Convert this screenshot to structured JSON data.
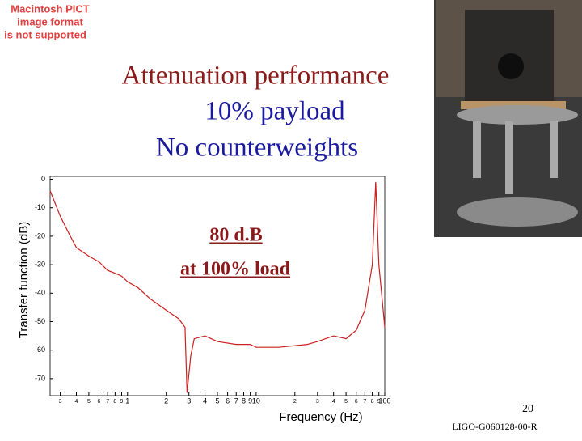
{
  "slide": {
    "placeholder": [
      "Macintosh PICT",
      "image format",
      "is not supported"
    ],
    "title_lines": [
      "Attenuation performance",
      "10% payload",
      "No counterweights"
    ],
    "annotation_lines": [
      "80 d.B",
      "at 100% load"
    ],
    "page_number": "20",
    "footer": "LIGO-G060128-00-R"
  },
  "chart_data": {
    "type": "line",
    "x_label": "Frequency (Hz)",
    "y_label": "Transfer function (dB)",
    "xscale": "log",
    "color": "#cc2020",
    "xlim": [
      0.25,
      100
    ],
    "ylim": [
      -76,
      1
    ],
    "xticks": [
      {
        "value": 0.3,
        "label": "3"
      },
      {
        "value": 0.4,
        "label": "4"
      },
      {
        "value": 0.5,
        "label": "5"
      },
      {
        "value": 0.6,
        "label": "6"
      },
      {
        "value": 0.7,
        "label": "7"
      },
      {
        "value": 0.8,
        "label": "8"
      },
      {
        "value": 0.9,
        "label": "9"
      },
      1,
      2,
      3,
      4,
      5,
      6,
      7,
      8,
      9,
      10,
      {
        "value": 20,
        "label": "2"
      },
      {
        "value": 30,
        "label": "3"
      },
      {
        "value": 40,
        "label": "4"
      },
      {
        "value": 50,
        "label": "5"
      },
      {
        "value": 60,
        "label": "6"
      },
      {
        "value": 70,
        "label": "7"
      },
      {
        "value": 80,
        "label": "8"
      },
      {
        "value": 90,
        "label": "9"
      },
      100
    ],
    "yticks": [
      0,
      -10,
      -20,
      -30,
      -40,
      -50,
      -60,
      -70
    ],
    "x": [
      0.25,
      0.3,
      0.35,
      0.4,
      0.5,
      0.6,
      0.7,
      0.8,
      0.9,
      1,
      1.2,
      1.5,
      2,
      2.5,
      2.8,
      2.9,
      3.1,
      3.3,
      4,
      5,
      7,
      9,
      10,
      15,
      25,
      30,
      40,
      50,
      60,
      70,
      80,
      85,
      90,
      100
    ],
    "values": [
      -4,
      -13,
      -19,
      -24,
      -27,
      -29,
      -32,
      -33,
      -34,
      -36,
      -38,
      -42,
      -46,
      -49,
      -52,
      -75,
      -62,
      -56,
      -55,
      -57,
      -58,
      -58,
      -59,
      -59,
      -58,
      -57,
      -55,
      -56,
      -53,
      -46,
      -30,
      -1,
      -30,
      -52
    ]
  }
}
